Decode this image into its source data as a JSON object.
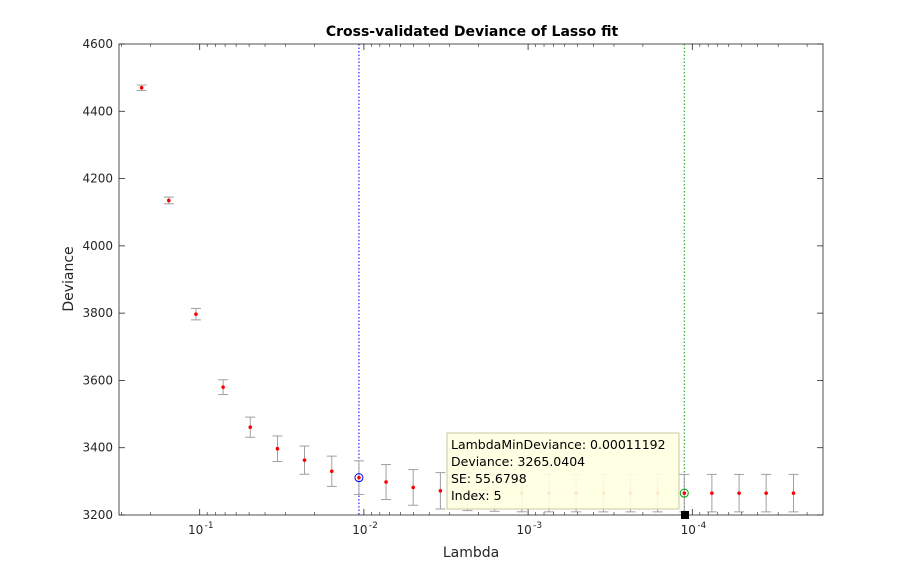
{
  "chart_data": {
    "type": "scatter",
    "title": "Cross-validated Deviance of Lasso fit",
    "xlabel": "Lambda",
    "ylabel": "Deviance",
    "x_scale": "log",
    "x_reversed": true,
    "xlim": [
      1.6e-05,
      0.31
    ],
    "ylim": [
      3200,
      4600
    ],
    "xticks": [
      0.1,
      0.01,
      0.001,
      0.0001
    ],
    "xtick_labels": [
      {
        "base": "10",
        "exp": "-1"
      },
      {
        "base": "10",
        "exp": "-2"
      },
      {
        "base": "10",
        "exp": "-3"
      },
      {
        "base": "10",
        "exp": "-4"
      }
    ],
    "yticks": [
      3200,
      3400,
      3600,
      3800,
      4000,
      4200,
      4400,
      4600
    ],
    "grid": false,
    "series": [
      {
        "lambda": [
          0.2257,
          0.1542,
          0.1054,
          0.072,
          0.0492,
          0.0336,
          0.023,
          0.01569,
          0.01072,
          0.00733,
          0.00501,
          0.00342,
          0.002338,
          0.001598,
          0.001092,
          0.000746,
          0.00051,
          0.000348,
          0.000238,
          0.0001626,
          0.0001119,
          7.6e-05,
          5.19e-05,
          3.55e-05,
          2.42e-05
        ],
        "deviance": [
          4470,
          4135,
          3797,
          3580,
          3461,
          3397,
          3363,
          3330,
          3311,
          3298,
          3282,
          3272,
          3268,
          3266,
          3265,
          3265,
          3265,
          3265,
          3265,
          3265,
          3265,
          3265,
          3265,
          3265,
          3265
        ],
        "se": [
          8,
          10,
          17,
          22,
          30,
          38,
          42,
          45,
          50,
          52,
          53,
          54,
          55,
          55,
          55.5,
          55.6,
          55.6,
          55.7,
          55.7,
          55.7,
          55.6798,
          55.7,
          55.7,
          55.7,
          55.7
        ]
      }
    ],
    "lambda_1se": 0.01072,
    "lambda_min": 0.00011192,
    "colors": {
      "point": "#ff0000",
      "errorbar": "#a0a0a0",
      "se_line": "#0000ff",
      "min_line": "#00a000",
      "tooltip_bg": "#ffffe1",
      "tooltip_border": "#c8c8a0"
    },
    "datatip": {
      "lines": [
        "LambdaMinDeviance: 0.00011192",
        "Deviance: 3265.0404",
        "SE: 55.6798",
        "Index: 5"
      ]
    }
  }
}
